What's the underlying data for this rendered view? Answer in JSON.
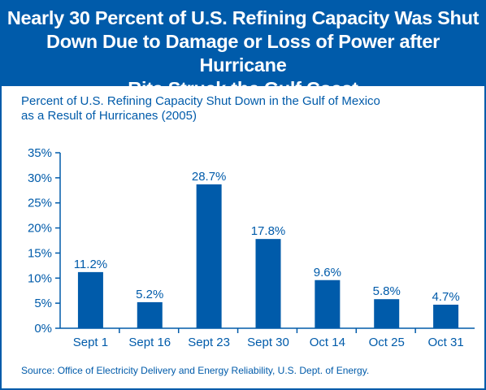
{
  "header": {
    "title_lines": [
      "Nearly 30 Percent of U.S. Refining Capacity Was Shut",
      "Down Due to Damage or Loss of Power after Hurricane",
      "Rita Struck the Gulf Coast"
    ]
  },
  "subtitle_lines": [
    "Percent of U.S. Refining Capacity Shut Down in the Gulf of Mexico",
    "as a Result of Hurricanes (2005)"
  ],
  "source": "Source: Office of Electricity Delivery and Energy Reliability, U.S. Dept. of Energy.",
  "colors": {
    "brand": "#005baa",
    "bar": "#005baa",
    "text": "#005baa",
    "background": "#ffffff"
  },
  "chart_data": {
    "type": "bar",
    "categories": [
      "Sept 1",
      "Sept 16",
      "Sept 23",
      "Sept 30",
      "Oct 14",
      "Oct 25",
      "Oct 31"
    ],
    "values": [
      11.2,
      5.2,
      28.7,
      17.8,
      9.6,
      5.8,
      4.7
    ],
    "data_labels": [
      "11.2%",
      "5.2%",
      "28.7%",
      "17.8%",
      "9.6%",
      "5.8%",
      "4.7%"
    ],
    "ylim": [
      0,
      35
    ],
    "yticks": [
      0,
      5,
      10,
      15,
      20,
      25,
      30,
      35
    ],
    "ytick_labels": [
      "0%",
      "5%",
      "10%",
      "15%",
      "20%",
      "25%",
      "30%",
      "35%"
    ],
    "grid": false,
    "legend": "none"
  }
}
